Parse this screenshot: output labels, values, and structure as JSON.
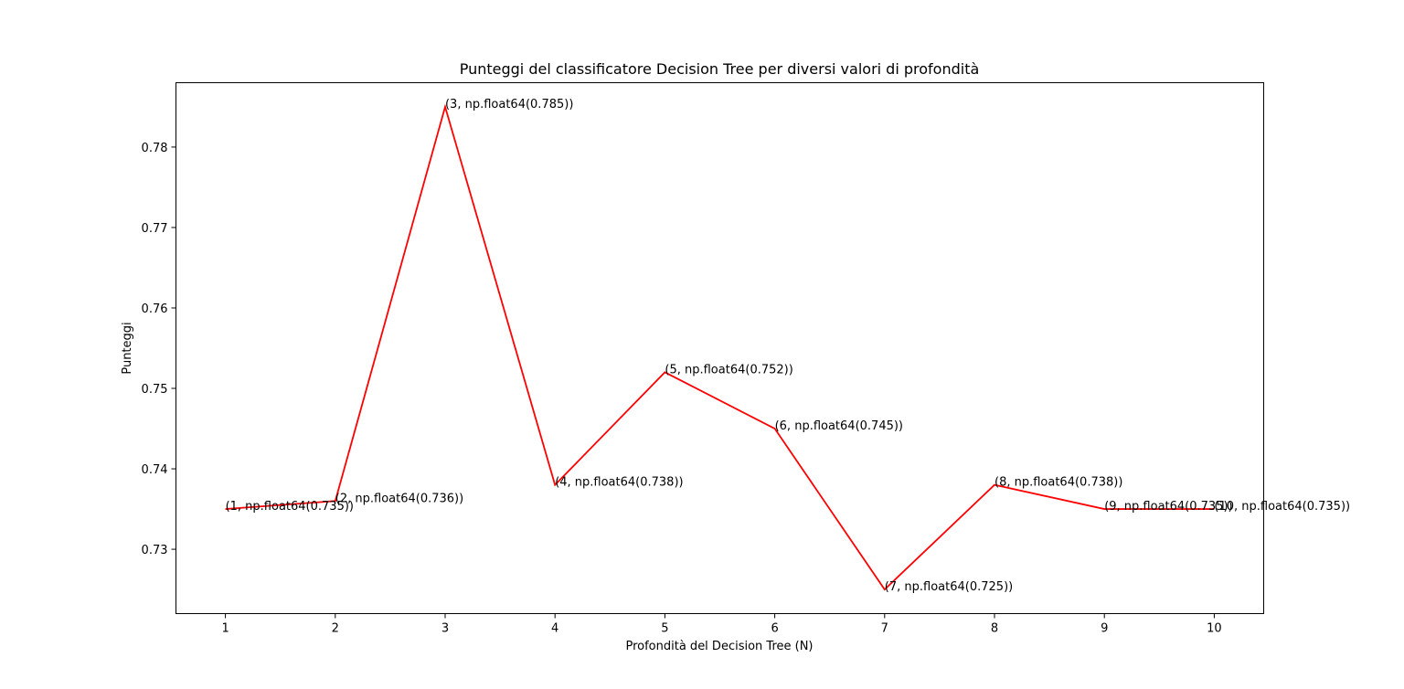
{
  "chart_data": {
    "type": "line",
    "title": "Punteggi del classificatore Decision Tree per diversi valori di profondità",
    "xlabel": "Profondità del Decision Tree (N)",
    "ylabel": "Punteggi",
    "x": [
      1,
      2,
      3,
      4,
      5,
      6,
      7,
      8,
      9,
      10
    ],
    "series": [
      {
        "color": "#ff0000",
        "values": [
          0.735,
          0.736,
          0.785,
          0.738,
          0.752,
          0.745,
          0.725,
          0.738,
          0.735,
          0.735
        ]
      }
    ],
    "annotations": [
      "(1, np.float64(0.735))",
      "(2, np.float64(0.736))",
      "(3, np.float64(0.785))",
      "(4, np.float64(0.738))",
      "(5, np.float64(0.752))",
      "(6, np.float64(0.745))",
      "(7, np.float64(0.725))",
      "(8, np.float64(0.738))",
      "(9, np.float64(0.735))",
      "(10, np.float64(0.735))"
    ],
    "xticks": [
      "1",
      "2",
      "3",
      "4",
      "5",
      "6",
      "7",
      "8",
      "9",
      "10"
    ],
    "yticks": [
      "0.73",
      "0.74",
      "0.75",
      "0.76",
      "0.77",
      "0.78"
    ],
    "xlim": [
      0.55,
      10.45
    ],
    "ylim": [
      0.722,
      0.788
    ],
    "grid": false,
    "legend": "none"
  }
}
